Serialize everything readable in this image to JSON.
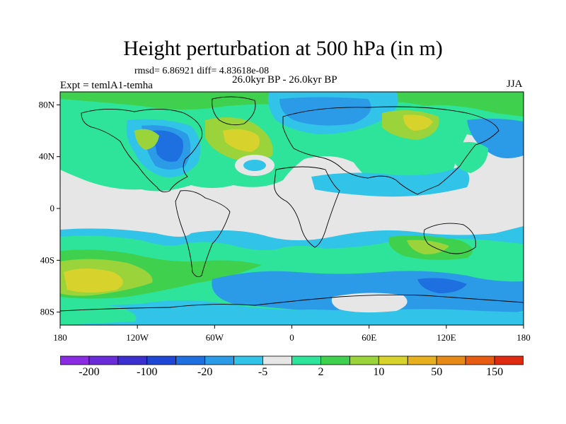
{
  "title": "Height perturbation at 500 hPa (in m)",
  "subtitle_stats": "rmsd= 6.86921  diff= 4.83618e-08",
  "experiment_label": "Expt = temlA1-temha",
  "period_label": "26.0kyr BP - 26.0kyr BP",
  "season_label": "JJA",
  "colors": {
    "land_outline": "#000000",
    "neutral": "#e6e6e6"
  },
  "map": {
    "lon_range": [
      -180,
      180
    ],
    "lat_range": [
      -90,
      90
    ],
    "lat_ticks": [
      {
        "value": 80,
        "label": "80N"
      },
      {
        "value": 40,
        "label": "40N"
      },
      {
        "value": 0,
        "label": "0"
      },
      {
        "value": -40,
        "label": "40S"
      },
      {
        "value": -80,
        "label": "80S"
      }
    ],
    "lon_ticks": [
      {
        "value": -180,
        "label": "180"
      },
      {
        "value": -120,
        "label": "120W"
      },
      {
        "value": -60,
        "label": "60W"
      },
      {
        "value": 0,
        "label": "0"
      },
      {
        "value": 60,
        "label": "60E"
      },
      {
        "value": 120,
        "label": "120E"
      },
      {
        "value": 180,
        "label": "180"
      }
    ]
  },
  "colorbar": {
    "colors": [
      "#8a2be2",
      "#6a2bd9",
      "#3c2fd0",
      "#1f47d6",
      "#1e6fe0",
      "#2b9be8",
      "#32c3e8",
      "#e6e6e6",
      "#2ee39a",
      "#3fd14e",
      "#9ad43a",
      "#d8d22c",
      "#e6b01e",
      "#e68a17",
      "#e85c12",
      "#e02a10"
    ],
    "labels": [
      {
        "text": "-200",
        "boundary": 1
      },
      {
        "text": "-100",
        "boundary": 3
      },
      {
        "text": "-20",
        "boundary": 5
      },
      {
        "text": "-5",
        "boundary": 7
      },
      {
        "text": "2",
        "boundary": 9
      },
      {
        "text": "10",
        "boundary": 11
      },
      {
        "text": "50",
        "boundary": 13
      },
      {
        "text": "150",
        "boundary": 15
      }
    ]
  }
}
